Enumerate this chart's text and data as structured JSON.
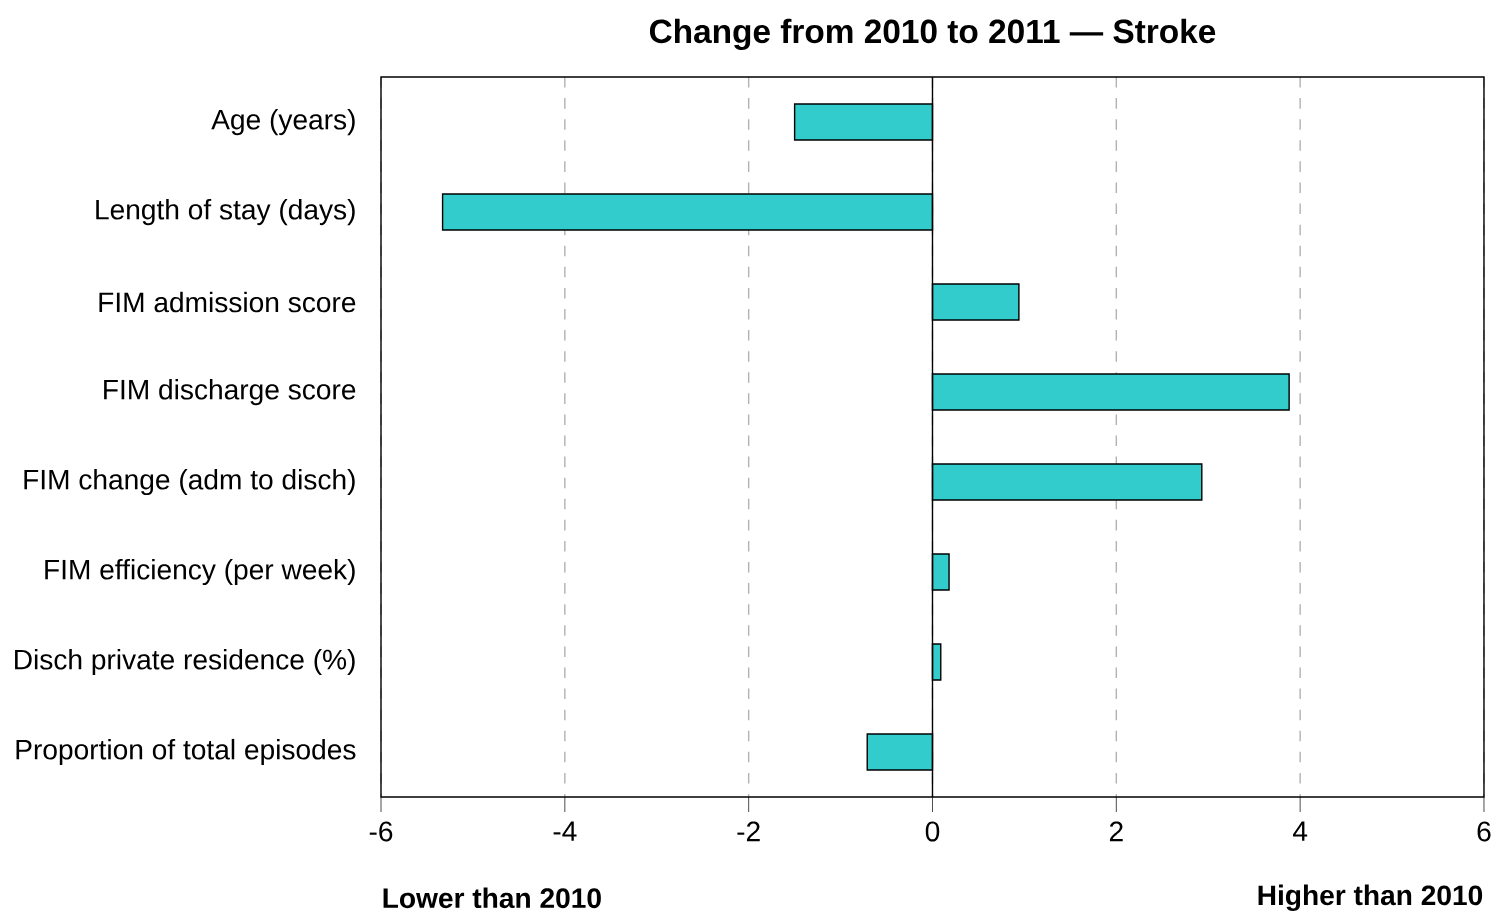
{
  "chart_data": {
    "type": "bar",
    "orientation": "horizontal",
    "title": "Change from 2010 to 2011 — Stroke",
    "categories": [
      "Age (years)",
      "Length of stay (days)",
      "FIM admission score",
      "FIM discharge score",
      "FIM change (adm to disch)",
      "FIM efficiency (per week)",
      "Disch private residence (%)",
      "Proportion of total episodes"
    ],
    "values": [
      -1.5,
      -5.33,
      0.94,
      3.88,
      2.93,
      0.18,
      0.09,
      -0.71
    ],
    "color": "#33cccc",
    "xlim": [
      -6,
      6
    ],
    "xticks": [
      -6,
      -4,
      -2,
      0,
      2,
      4,
      6
    ],
    "grid": "x",
    "annotations": [
      "Lower than 2010",
      "Higher than 2010"
    ]
  }
}
